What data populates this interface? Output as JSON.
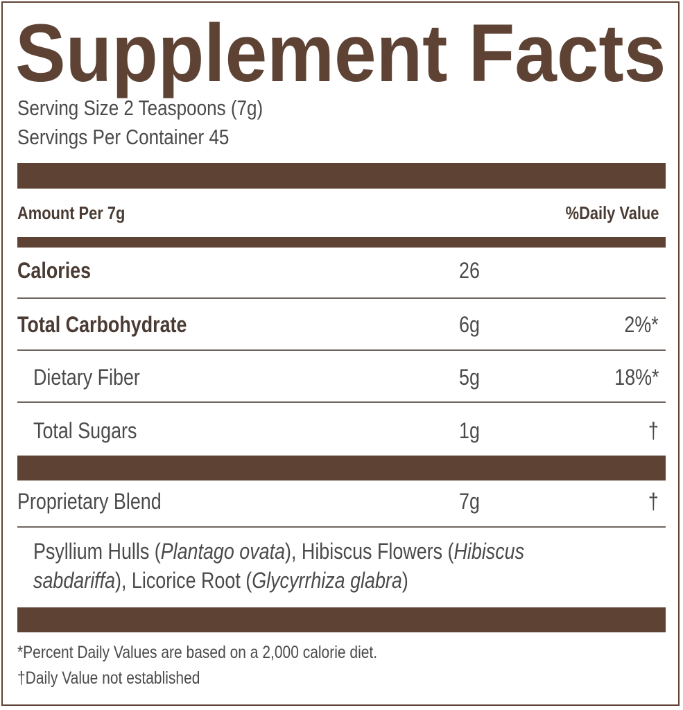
{
  "title": "Supplement Facts",
  "serving_size": "Serving Size 2 Teaspoons (7g)",
  "servings_per_container": "Servings Per Container 45",
  "header": {
    "amount": "Amount Per 7g",
    "dv": "%Daily Value"
  },
  "rows": [
    {
      "name": "Calories",
      "amount": "26",
      "dv": ""
    },
    {
      "name": "Total Carbohydrate",
      "amount": "6g",
      "dv": "2%*"
    },
    {
      "name": "Dietary Fiber",
      "amount": "5g",
      "dv": "18%*"
    },
    {
      "name": "Total Sugars",
      "amount": "1g",
      "dv": "†"
    },
    {
      "name": "Proprietary Blend",
      "amount": "7g",
      "dv": "†"
    }
  ],
  "ingredients": {
    "p1": "Psyllium Hulls (",
    "i1": "Plantago ovata",
    "p2": "), Hibiscus Flowers (",
    "i2": "Hibiscus",
    "i3": "sabdariffa",
    "p3": "), Licorice Root (",
    "i4": "Glycyrrhiza glabra",
    "p4": ")"
  },
  "footnotes": [
    "*Percent Daily Values are based on a 2,000 calorie diet.",
    "†Daily Value not established"
  ],
  "colors": {
    "brand_brown": "#5e4335",
    "text": "#4a4a4a"
  }
}
